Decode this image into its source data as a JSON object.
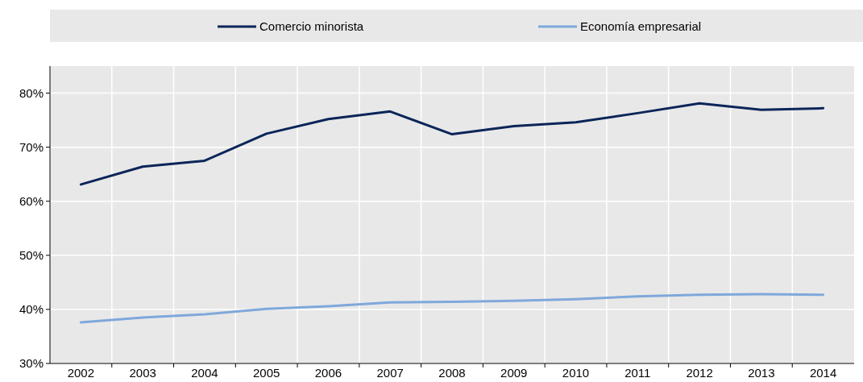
{
  "chart_data": {
    "type": "line",
    "categories": [
      "2002",
      "2003",
      "2004",
      "2005",
      "2006",
      "2007",
      "2008",
      "2009",
      "2010",
      "2011",
      "2012",
      "2013",
      "2014"
    ],
    "series": [
      {
        "name": "Comercio minorista",
        "color": "#0b2559",
        "values": [
          63.1,
          66.4,
          67.5,
          72.5,
          75.2,
          76.6,
          72.4,
          73.9,
          74.6,
          76.3,
          78.1,
          76.9,
          77.2
        ]
      },
      {
        "name": "Economía empresarial",
        "color": "#7fa8db",
        "values": [
          37.6,
          38.5,
          39.1,
          40.1,
          40.6,
          41.3,
          41.4,
          41.6,
          41.9,
          42.4,
          42.7,
          42.8,
          42.7
        ]
      }
    ],
    "ylim": [
      30,
      85
    ],
    "yticks": [
      {
        "value": 30,
        "label": "30%"
      },
      {
        "value": 40,
        "label": "40%"
      },
      {
        "value": 50,
        "label": "50%"
      },
      {
        "value": 60,
        "label": "60%"
      },
      {
        "value": 70,
        "label": "70%"
      },
      {
        "value": 80,
        "label": "80%"
      }
    ],
    "grid": true,
    "legend": "top",
    "marker": "none",
    "line_style": "solid"
  }
}
